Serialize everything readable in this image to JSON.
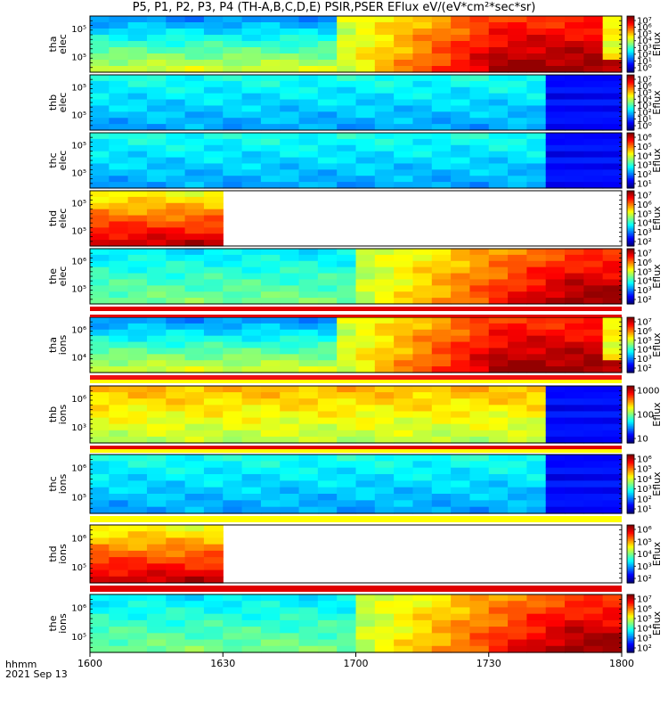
{
  "title": "P5, P1, P2, P3, P4 (TH-A,B,C,D,E) PSIR,PSER EFlux eV/(eV*cm²*sec*sr)",
  "x_axis": {
    "label_line1": "hhmm",
    "label_line2": "2021 Sep 13",
    "ticks": [
      "1600",
      "1630",
      "1700",
      "1730",
      "1800"
    ]
  },
  "colorbar_label": "Eflux",
  "chart_data": {
    "type": "heatmap",
    "x_range": [
      "1600",
      "1800"
    ],
    "panels": [
      {
        "name": "tha elec",
        "ylabels": [
          "10⁵",
          "10⁵"
        ],
        "cb_ticks": [
          "10⁷",
          "10⁶",
          "10⁵",
          "10⁴",
          "10³",
          "10²",
          "10¹",
          "10⁰"
        ],
        "min_level": 0.05,
        "max_level": 0.98
      },
      {
        "name": "thb elec",
        "ylabels": [
          "10⁵",
          "10⁵"
        ],
        "cb_ticks": [
          "10⁷",
          "10⁶",
          "10⁵",
          "10⁴",
          "10³",
          "10²",
          "10¹",
          "10⁰"
        ],
        "min_level": 0.05,
        "max_level": 0.5
      },
      {
        "name": "thc elec",
        "ylabels": [
          "10⁵",
          "10⁵"
        ],
        "cb_ticks": [
          "10⁶",
          "10⁵",
          "10⁴",
          "10³",
          "10²",
          "10¹"
        ],
        "min_level": 0.05,
        "max_level": 0.5
      },
      {
        "name": "thd elec",
        "ylabels": [
          "10⁵",
          "10⁵"
        ],
        "cb_ticks": [
          "10⁷",
          "10⁶",
          "10⁵",
          "10⁴",
          "10³",
          "10²"
        ],
        "min_level": 0.3,
        "max_level": 0.98
      },
      {
        "name": "the elec",
        "ylabels": [
          "10⁶",
          "10⁵"
        ],
        "cb_ticks": [
          "10⁷",
          "10⁶",
          "10⁵",
          "10⁴",
          "10³",
          "10²"
        ],
        "min_level": 0.05,
        "max_level": 0.98
      },
      {
        "name": "tha ions",
        "ylabels": [
          "10⁶",
          "10⁴"
        ],
        "cb_ticks": [
          "10⁷",
          "10⁶",
          "10⁵",
          "10⁴",
          "10³",
          "10²"
        ],
        "min_level": 0.05,
        "max_level": 0.98
      },
      {
        "name": "thb ions",
        "ylabels": [
          "10⁶",
          "10³"
        ],
        "cb_ticks": [
          "1000",
          "100",
          "10"
        ],
        "min_level": 0.05,
        "max_level": 0.7
      },
      {
        "name": "thc ions",
        "ylabels": [
          "10⁶",
          "10⁵"
        ],
        "cb_ticks": [
          "10⁶",
          "10⁵",
          "10⁴",
          "10³",
          "10²",
          "10¹"
        ],
        "min_level": 0.05,
        "max_level": 0.5
      },
      {
        "name": "thd ions",
        "ylabels": [
          "10⁶",
          "10⁵"
        ],
        "cb_ticks": [
          "10⁶",
          "10⁵",
          "10⁴",
          "10³",
          "10²"
        ],
        "min_level": 0.3,
        "max_level": 0.98
      },
      {
        "name": "the ions",
        "ylabels": [
          "10⁶",
          "10⁵"
        ],
        "cb_ticks": [
          "10⁷",
          "10⁶",
          "10⁵",
          "10⁴",
          "10³",
          "10²"
        ],
        "min_level": 0.05,
        "max_level": 0.98
      }
    ]
  }
}
